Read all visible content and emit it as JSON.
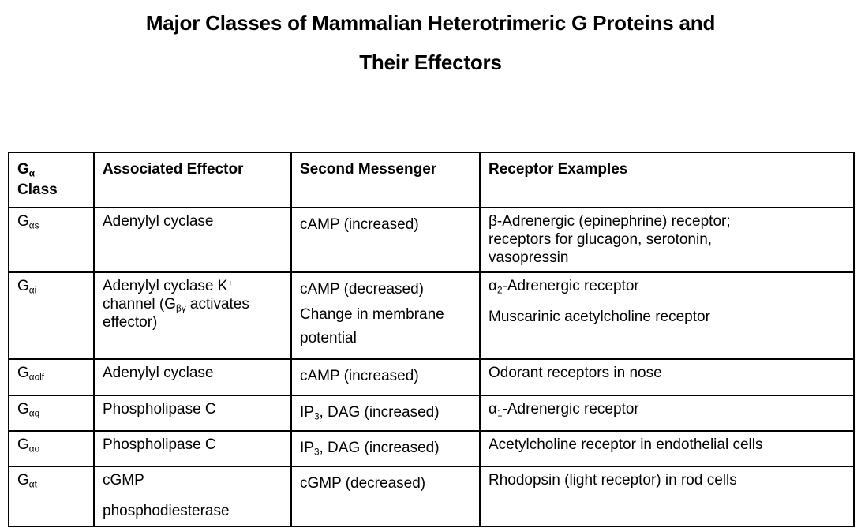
{
  "page": {
    "title_line1": "Major Classes of Mammalian Heterotrimeric G Proteins and",
    "title_line2": "Their Effectors"
  },
  "colors": {
    "background": "#ffffff",
    "text": "#000000",
    "table_border": "#000000"
  },
  "table": {
    "headers": {
      "ga_class": "G<sub>α</sub>\nClass",
      "effector": "Associated Effector",
      "messenger": "Second Messenger",
      "receptors": "Receptor Examples"
    },
    "rows": [
      {
        "ga_class": [
          "G<sub>αs</sub>"
        ],
        "effector": [
          "Adenylyl cyclase"
        ],
        "messenger": [
          "cAMP (increased)"
        ],
        "receptors": [
          "β-Adrenergic (epinephrine) receptor;\nreceptors for glucagon, serotonin,\nvasopressin"
        ]
      },
      {
        "ga_class": [
          "G<sub>αi</sub>"
        ],
        "effector": [
          "Adenylyl cyclase K<sup>+</sup>\nchannel (G<sub>βγ</sub> activates\neffector)"
        ],
        "messenger": [
          "cAMP (decreased)",
          "Change in membrane\npotential"
        ],
        "receptors": [
          "α<sub>2</sub>-Adrenergic receptor",
          "Muscarinic acetylcholine receptor"
        ]
      },
      {
        "ga_class": [
          "G<sub>αolf</sub>"
        ],
        "effector": [
          "Adenylyl cyclase"
        ],
        "messenger": [
          "cAMP (increased)"
        ],
        "receptors": [
          "Odorant receptors in nose"
        ]
      },
      {
        "ga_class": [
          "G<sub>αq</sub>"
        ],
        "effector": [
          "Phospholipase C"
        ],
        "messenger": [
          "IP<sub>3</sub>, DAG (increased)"
        ],
        "receptors": [
          "α<sub>1</sub>-Adrenergic receptor"
        ]
      },
      {
        "ga_class": [
          "G<sub>αo</sub>"
        ],
        "effector": [
          "Phospholipase C"
        ],
        "messenger": [
          "IP<sub>3</sub>, DAG (increased)"
        ],
        "receptors": [
          "Acetylcholine receptor in endothelial cells"
        ]
      },
      {
        "ga_class": [
          "G<sub>αt</sub>"
        ],
        "effector": [
          "cGMP",
          "phosphodiesterase"
        ],
        "messenger": [
          "cGMP (decreased)"
        ],
        "receptors": [
          "Rhodopsin (light receptor) in rod cells"
        ]
      }
    ]
  }
}
